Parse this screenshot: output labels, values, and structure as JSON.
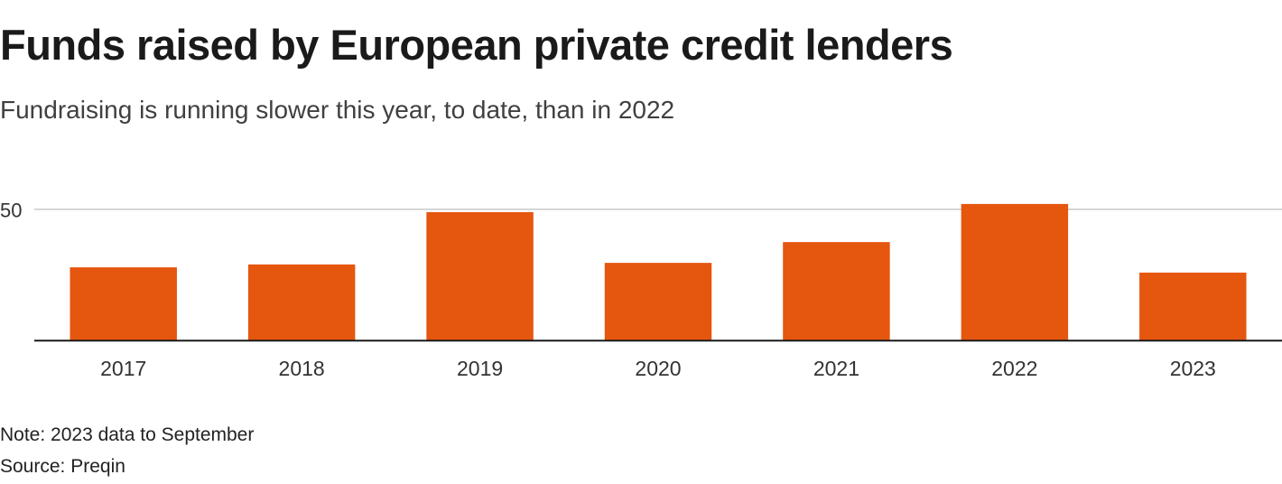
{
  "chart_data": {
    "type": "bar",
    "title": "Funds raised by European private credit lenders",
    "subtitle": "Fundraising is running slower this year, to date, than in 2022",
    "categories": [
      "2017",
      "2018",
      "2019",
      "2020",
      "2021",
      "2022",
      "2023"
    ],
    "values": [
      27.9,
      29.0,
      48.9,
      29.6,
      37.5,
      52.0,
      25.9
    ],
    "xlabel": "",
    "ylabel": "",
    "ylim": [
      0,
      55
    ],
    "yticks": [
      50
    ],
    "grid": true,
    "bar_color": "#e5560f"
  },
  "footer": {
    "note": "Note: 2023 data to September",
    "source": "Source: Preqin"
  }
}
